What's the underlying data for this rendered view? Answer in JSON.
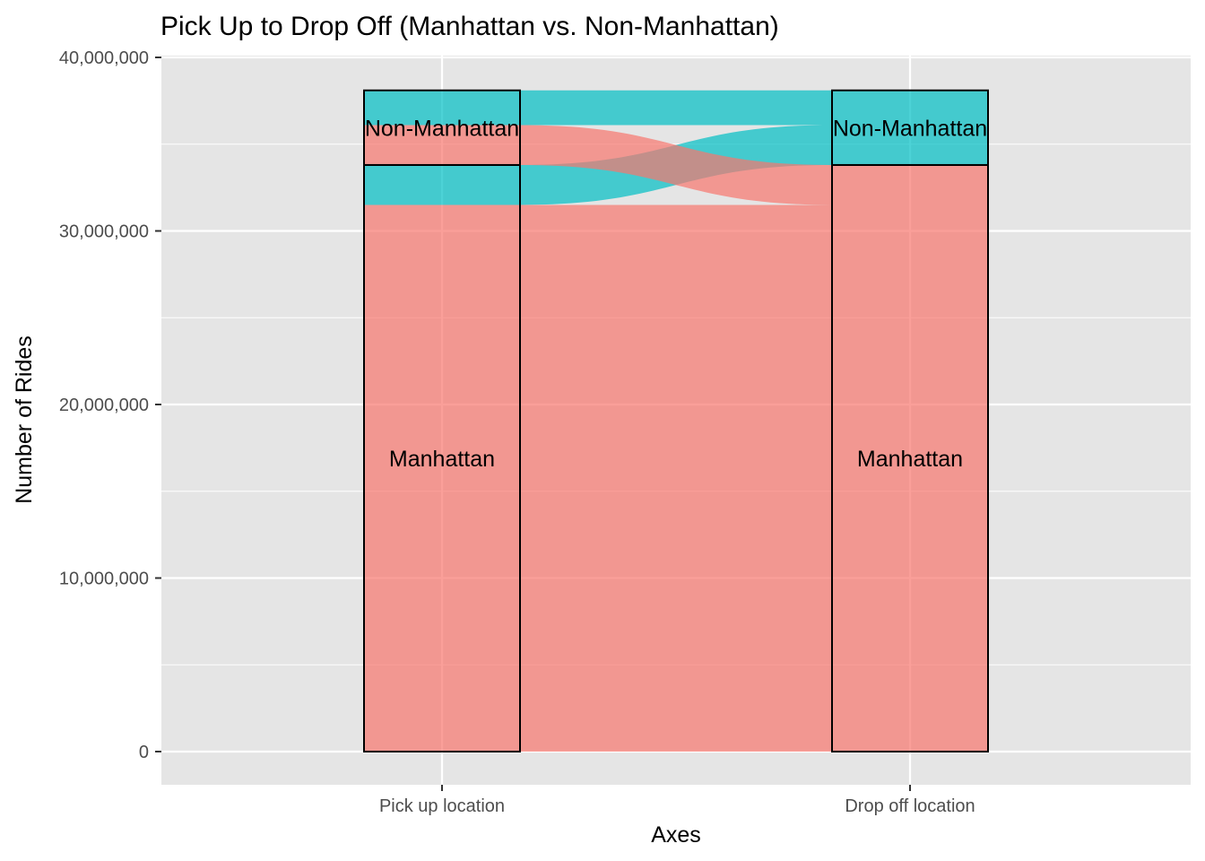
{
  "chart_data": {
    "type": "alluvial",
    "title": "Pick Up to Drop Off (Manhattan vs. Non-Manhattan)",
    "xlabel": "Axes",
    "ylabel": "Number of Rides",
    "ylim": [
      -1900000,
      40000000
    ],
    "y_ticks": [
      0,
      10000000,
      20000000,
      30000000,
      40000000
    ],
    "y_tick_labels": [
      "0",
      "10,000,000",
      "20,000,000",
      "30,000,000",
      "40,000,000"
    ],
    "axes": [
      "Pick up location",
      "Drop off location"
    ],
    "strata": {
      "Pick up location": [
        {
          "label": "Manhattan",
          "value": 33800000
        },
        {
          "label": "Non-Manhattan",
          "value": 4300000
        }
      ],
      "Drop off location": [
        {
          "label": "Manhattan",
          "value": 33800000
        },
        {
          "label": "Non-Manhattan",
          "value": 4300000
        }
      ]
    },
    "flows": [
      {
        "from": "Manhattan",
        "to": "Manhattan",
        "value": 31500000,
        "fill_group": "Manhattan"
      },
      {
        "from": "Manhattan",
        "to": "Non-Manhattan",
        "value": 2300000,
        "fill_group": "Non-Manhattan"
      },
      {
        "from": "Non-Manhattan",
        "to": "Manhattan",
        "value": 2300000,
        "fill_group": "Manhattan"
      },
      {
        "from": "Non-Manhattan",
        "to": "Non-Manhattan",
        "value": 2000000,
        "fill_group": "Non-Manhattan"
      }
    ],
    "colors": {
      "Manhattan": "#F8766D",
      "Non-Manhattan": "#00BFC4",
      "panel_background": "#E5E5E5",
      "grid": "#FFFFFF"
    },
    "grid": true,
    "legend": "none"
  }
}
